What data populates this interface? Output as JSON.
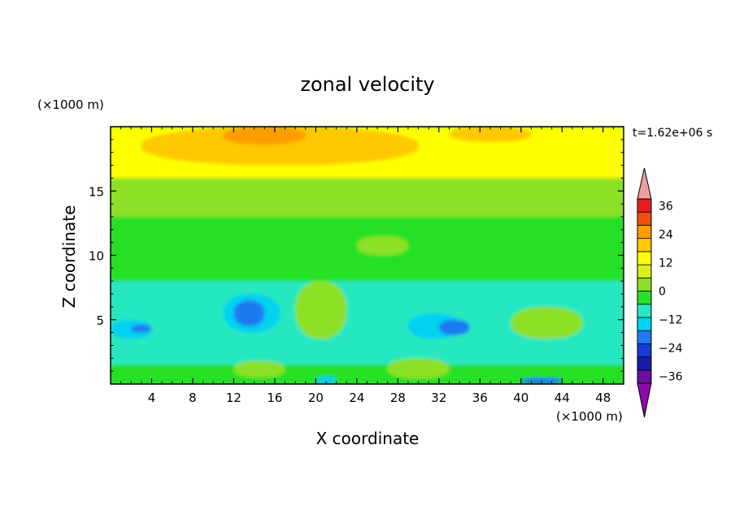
{
  "chart_data": {
    "type": "heatmap",
    "title": "zonal velocity",
    "xlabel": "X coordinate",
    "ylabel": "Z coordinate",
    "x_unit": "(×1000 m)",
    "y_unit": "(×1000 m)",
    "time_label": "t=1.62e+06 s",
    "xlim": [
      0,
      50
    ],
    "ylim": [
      0,
      20
    ],
    "x_ticks": [
      "4",
      "8",
      "12",
      "16",
      "20",
      "24",
      "28",
      "32",
      "36",
      "40",
      "44",
      "48"
    ],
    "y_ticks": [
      "5",
      "10",
      "15"
    ],
    "colorbar": {
      "levels": [
        -39,
        -33,
        -27,
        -21,
        -15,
        -9,
        -3,
        3,
        9,
        15,
        21,
        27,
        33,
        39
      ],
      "tick_labels": [
        "36",
        "24",
        "12",
        "0",
        "−12",
        "−24",
        "−36"
      ],
      "tick_values": [
        36,
        24,
        12,
        0,
        -12,
        -24,
        -36
      ],
      "colors": [
        "#6a0fa0",
        "#1a1aa8",
        "#1a3ad8",
        "#1e7af0",
        "#00d2f0",
        "#28e8c0",
        "#28e028",
        "#8ce028",
        "#d8f018",
        "#ffff00",
        "#ffc800",
        "#ff9c00",
        "#f05010",
        "#e81e1e"
      ],
      "over_color": "#f0a0a0",
      "under_color": "#8a0aa8"
    },
    "regions": [
      {
        "level": 16,
        "x": [
          0,
          50
        ],
        "z": [
          15.5,
          20
        ]
      },
      {
        "level": 24,
        "x": [
          3,
          30
        ],
        "z": [
          17,
          20
        ]
      },
      {
        "level": 30,
        "x": [
          11,
          19
        ],
        "z": [
          18.6,
          20
        ]
      },
      {
        "level": 24,
        "x": [
          33,
          41
        ],
        "z": [
          18.8,
          20
        ]
      },
      {
        "level": 8,
        "x": [
          0,
          50
        ],
        "z": [
          14,
          16
        ]
      },
      {
        "level": 6,
        "x": [
          0,
          50
        ],
        "z": [
          11,
          14
        ]
      },
      {
        "level": 2,
        "x": [
          0,
          50
        ],
        "z": [
          8,
          13
        ]
      },
      {
        "level": 8,
        "x": [
          24,
          29
        ],
        "z": [
          10,
          11.5
        ]
      },
      {
        "level": -4,
        "x": [
          0,
          50
        ],
        "z": [
          1.5,
          8
        ]
      },
      {
        "level": -9,
        "x": [
          9,
          18
        ],
        "z": [
          3,
          8
        ]
      },
      {
        "level": -14,
        "x": [
          11,
          16.5
        ],
        "z": [
          4,
          7
        ]
      },
      {
        "level": -18,
        "x": [
          12,
          15
        ],
        "z": [
          4.5,
          6.5
        ]
      },
      {
        "level": 6,
        "x": [
          18,
          23
        ],
        "z": [
          3.5,
          8
        ]
      },
      {
        "level": -9,
        "x": [
          25,
          36
        ],
        "z": [
          3,
          7
        ]
      },
      {
        "level": -14,
        "x": [
          29,
          34
        ],
        "z": [
          3.5,
          5.5
        ]
      },
      {
        "level": -20,
        "x": [
          32,
          35
        ],
        "z": [
          3.8,
          5
        ]
      },
      {
        "level": -12,
        "x": [
          0,
          4
        ],
        "z": [
          3.5,
          5
        ]
      },
      {
        "level": -18,
        "x": [
          2,
          4
        ],
        "z": [
          4,
          4.6
        ]
      },
      {
        "level": 6,
        "x": [
          39,
          46
        ],
        "z": [
          3.5,
          6
        ]
      },
      {
        "level": 2,
        "x": [
          0,
          50
        ],
        "z": [
          0,
          1.5
        ]
      },
      {
        "level": -14,
        "x": [
          20,
          22
        ],
        "z": [
          0,
          0.6
        ]
      },
      {
        "level": -20,
        "x": [
          40,
          44
        ],
        "z": [
          0,
          0.5
        ]
      },
      {
        "level": 8,
        "x": [
          27,
          33
        ],
        "z": [
          0.4,
          2
        ]
      },
      {
        "level": 8,
        "x": [
          12,
          17
        ],
        "z": [
          0.5,
          1.8
        ]
      }
    ]
  }
}
